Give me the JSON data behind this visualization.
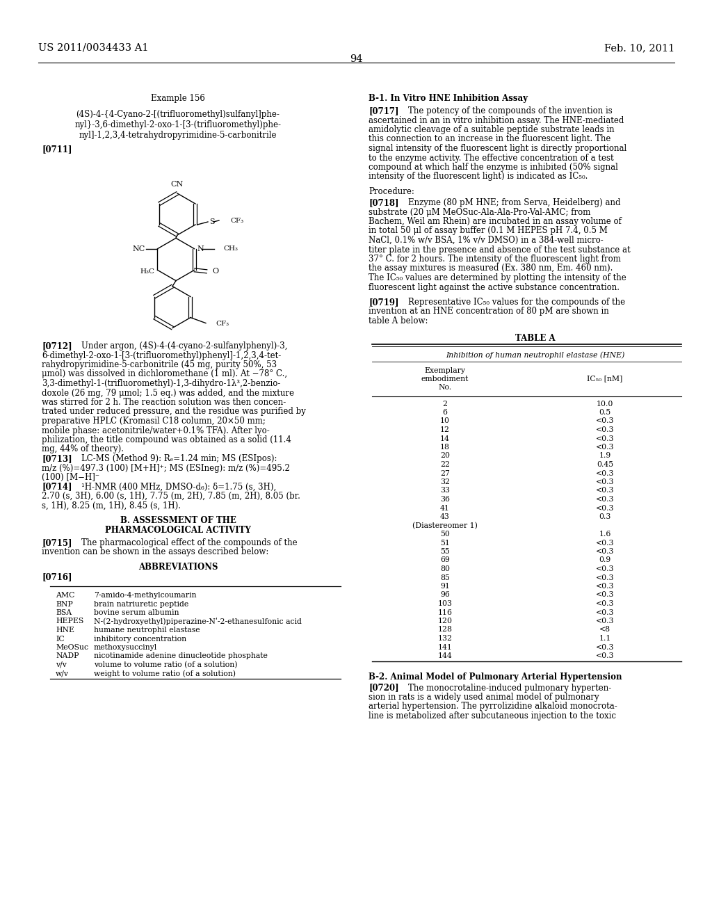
{
  "header_left": "US 2011/0034433 A1",
  "header_right": "Feb. 10, 2011",
  "page_number": "94",
  "example_title": "Example 156",
  "compound_name_lines": [
    "(4S)-4-{4-Cyano-2-[(trifluoromethyl)sulfanyl]phe-",
    "nyl}-3,6-dimethyl-2-oxo-1-[3-(trifluoromethyl)phe-",
    "nyl]-1,2,3,4-tetrahydropyrimidine-5-carbonitrile"
  ],
  "para_0711": "[0711]",
  "para_0712_lines": [
    "[0712]    Under argon, (4S)-4-(4-cyano-2-sulfanylphenyl)-3,",
    "6-dimethyl-2-oxo-1-[3-(trifluoromethyl)phenyl]-1,2,3,4-tet-",
    "rahydropyrimidine-5-carbonitrile (45 mg, purity 50%, 53",
    "μmol) was dissolved in dichloromethane (1 ml). At −78° C.,",
    "3,3-dimethyl-1-(trifluoromethyl)-1,3-dihydro-1λ³,2-benzio-",
    "doxole (26 mg, 79 μmol; 1.5 eq.) was added, and the mixture",
    "was stirred for 2 h. The reaction solution was then concen-",
    "trated under reduced pressure, and the residue was purified by",
    "preparative HPLC (Kromasil C18 column, 20×50 mm;",
    "mobile phase: acetonitrile/water+0.1% TFA). After lyo-",
    "philization, the title compound was obtained as a solid (11.4",
    "mg, 44% of theory)."
  ],
  "para_0713_lines": [
    "[0713]    LC-MS (Method 9): Rₑ=1.24 min; MS (ESIpos):",
    "m/z (%)=497.3 (100) [M+H]⁺; MS (ESIneg): m/z (%)=495.2",
    "(100) [M−H]⁻"
  ],
  "para_0714_lines": [
    "[0714]    ¹H-NMR (400 MHz, DMSO-d₆): δ=1.75 (s, 3H),",
    "2.70 (s, 3H), 6.00 (s, 1H), 7.75 (m, 2H), 7.85 (m, 2H), 8.05 (br.",
    "s, 1H), 8.25 (m, 1H), 8.45 (s, 1H)."
  ],
  "section_b_line1": "B. ASSESSMENT OF THE",
  "section_b_line2": "PHARMACOLOGICAL ACTIVITY",
  "para_0715_lines": [
    "[0715]    The pharmacological effect of the compounds of the",
    "invention can be shown in the assays described below:"
  ],
  "abbrev_title": "ABBREVIATIONS",
  "para_0716": "[0716]",
  "abbreviations": [
    [
      "AMC",
      "7-amido-4-methylcoumarin"
    ],
    [
      "BNP",
      "brain natriuretic peptide"
    ],
    [
      "BSA",
      "bovine serum albumin"
    ],
    [
      "HEPES",
      "N-(2-hydroxyethyl)piperazine-Nʹ-2-ethanesulfonic acid"
    ],
    [
      "HNE",
      "humane neutrophil elastase"
    ],
    [
      "IC",
      "inhibitory concentration"
    ],
    [
      "MeOSuc",
      "methoxysuccinyl"
    ],
    [
      "NADP",
      "nicotinamide adenine dinucleotide phosphate"
    ],
    [
      "v/v",
      "volume to volume ratio (of a solution)"
    ],
    [
      "w/v",
      "weight to volume ratio (of a solution)"
    ]
  ],
  "right_section_b1": "B-1. In Vitro HNE Inhibition Assay",
  "para_0717_lines": [
    "[0717]    The potency of the compounds of the invention is",
    "ascertained in an in vitro inhibition assay. The HNE-mediated",
    "amidolytic cleavage of a suitable peptide substrate leads in",
    "this connection to an increase in the fluorescent light. The",
    "signal intensity of the fluorescent light is directly proportional",
    "to the enzyme activity. The effective concentration of a test",
    "compound at which half the enzyme is inhibited (50% signal",
    "intensity of the fluorescent light) is indicated as IC₅₀."
  ],
  "procedure_label": "Procedure:",
  "para_0718_lines": [
    "[0718]    Enzyme (80 pM HNE; from Serva, Heidelberg) and",
    "substrate (20 μM MeOSuc-Ala-Ala-Pro-Val-AMC; from",
    "Bachem, Weil am Rhein) are incubated in an assay volume of",
    "in total 50 μl of assay buffer (0.1 M HEPES pH 7.4, 0.5 M",
    "NaCl, 0.1% w/v BSA, 1% v/v DMSO) in a 384-well micro-",
    "titer plate in the presence and absence of the test substance at",
    "37° C. for 2 hours. The intensity of the fluorescent light from",
    "the assay mixtures is measured (Ex. 380 nm, Em. 460 nm).",
    "The IC₅₀ values are determined by plotting the intensity of the",
    "fluorescent light against the active substance concentration."
  ],
  "para_0719_lines": [
    "[0719]    Representative IC₅₀ values for the compounds of the",
    "invention at an HNE concentration of 80 pM are shown in",
    "table A below:"
  ],
  "table_title": "TABLE A",
  "table_subtitle": "Inhibition of human neutrophil elastase (HNE)",
  "table_col1_header": [
    "Exemplary",
    "embodiment",
    "No."
  ],
  "table_col2_header": "IC₅₀ [nM]",
  "table_data": [
    [
      "2",
      "10.0"
    ],
    [
      "6",
      "0.5"
    ],
    [
      "10",
      "<0.3"
    ],
    [
      "12",
      "<0.3"
    ],
    [
      "14",
      "<0.3"
    ],
    [
      "18",
      "<0.3"
    ],
    [
      "20",
      "1.9"
    ],
    [
      "22",
      "0.45"
    ],
    [
      "27",
      "<0.3"
    ],
    [
      "32",
      "<0.3"
    ],
    [
      "33",
      "<0.3"
    ],
    [
      "36",
      "<0.3"
    ],
    [
      "41",
      "<0.3"
    ],
    [
      "43",
      "0.3"
    ],
    [
      "(Diastereomer 1)",
      ""
    ],
    [
      "50",
      "1.6"
    ],
    [
      "51",
      "<0.3"
    ],
    [
      "55",
      "<0.3"
    ],
    [
      "69",
      "0.9"
    ],
    [
      "80",
      "<0.3"
    ],
    [
      "85",
      "<0.3"
    ],
    [
      "91",
      "<0.3"
    ],
    [
      "96",
      "<0.3"
    ],
    [
      "103",
      "<0.3"
    ],
    [
      "116",
      "<0.3"
    ],
    [
      "120",
      "<0.3"
    ],
    [
      "128",
      "<8"
    ],
    [
      "132",
      "1.1"
    ],
    [
      "141",
      "<0.3"
    ],
    [
      "144",
      "<0.3"
    ]
  ],
  "right_section_b2": "B-2. Animal Model of Pulmonary Arterial Hypertension",
  "para_0720_lines": [
    "[0720]    The monocrotaline-induced pulmonary hyperten-",
    "sion in rats is a widely used animal model of pulmonary",
    "arterial hypertension. The pyrrolizidine alkaloid monocrota-",
    "line is metabolized after subcutaneous injection to the toxic"
  ]
}
